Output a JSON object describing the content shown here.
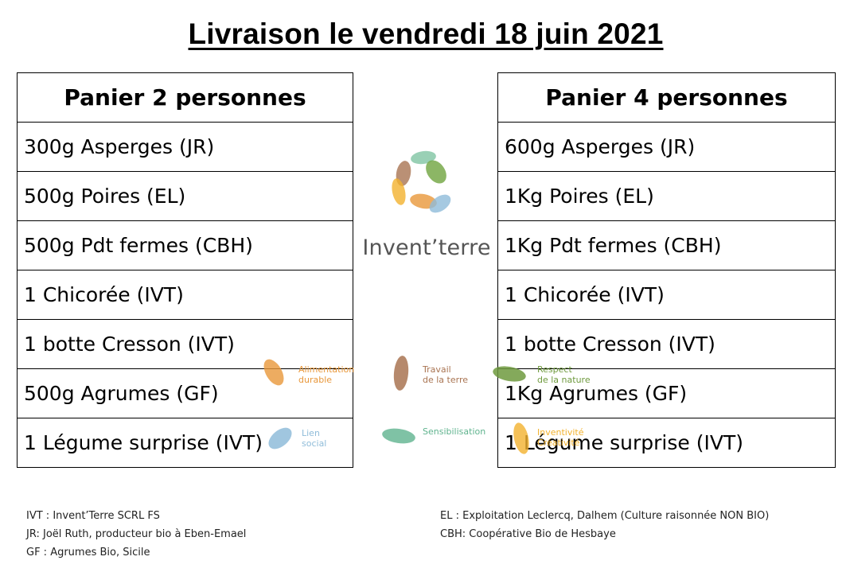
{
  "title": "Livraison le vendredi 18 juin 2021",
  "basket_2": {
    "header": "Panier 2 personnes",
    "items": [
      "300g Asperges (JR)",
      "500g Poires (EL)",
      "500g Pdt fermes (CBH)",
      "1 Chicorée (IVT)",
      "1 botte Cresson (IVT)",
      "500g Agrumes (GF)",
      "1 Légume surprise (IVT)"
    ]
  },
  "basket_4": {
    "header": "Panier 4 personnes",
    "items": [
      "600g Asperges (JR)",
      "1Kg Poires (EL)",
      "1Kg Pdt fermes (CBH)",
      "1 Chicorée (IVT)",
      "1 botte Cresson (IVT)",
      "1Kg Agrumes (GF)",
      "1 Légume surprise (IVT)"
    ]
  },
  "brand": {
    "name": "Invent’terre",
    "icon": "leaf-circle-logo-icon",
    "values": [
      {
        "line1": "Alimentation",
        "line2": "durable",
        "color": "#e8973a"
      },
      {
        "line1": "Travail",
        "line2": "de la terre",
        "color": "#a97452"
      },
      {
        "line1": "Respect",
        "line2": "de la nature",
        "color": "#6f9a3e"
      },
      {
        "line1": "Lien",
        "line2": "social",
        "color": "#8fbcd9"
      },
      {
        "line1": "Sensibilisation",
        "line2": "",
        "color": "#5fb38e"
      },
      {
        "line1": "Inventivité",
        "line2": "Créativité",
        "color": "#f2b22e"
      }
    ]
  },
  "legend": {
    "left": [
      "IVT : Invent’Terre SCRL FS",
      "JR: Joël Ruth, producteur bio à Eben-Emael",
      "GF : Agrumes Bio, Sicile"
    ],
    "right": [
      "EL : Exploitation Leclercq, Dalhem (Culture raisonnée NON BIO)",
      "CBH: Coopérative Bio de Hesbaye"
    ]
  }
}
